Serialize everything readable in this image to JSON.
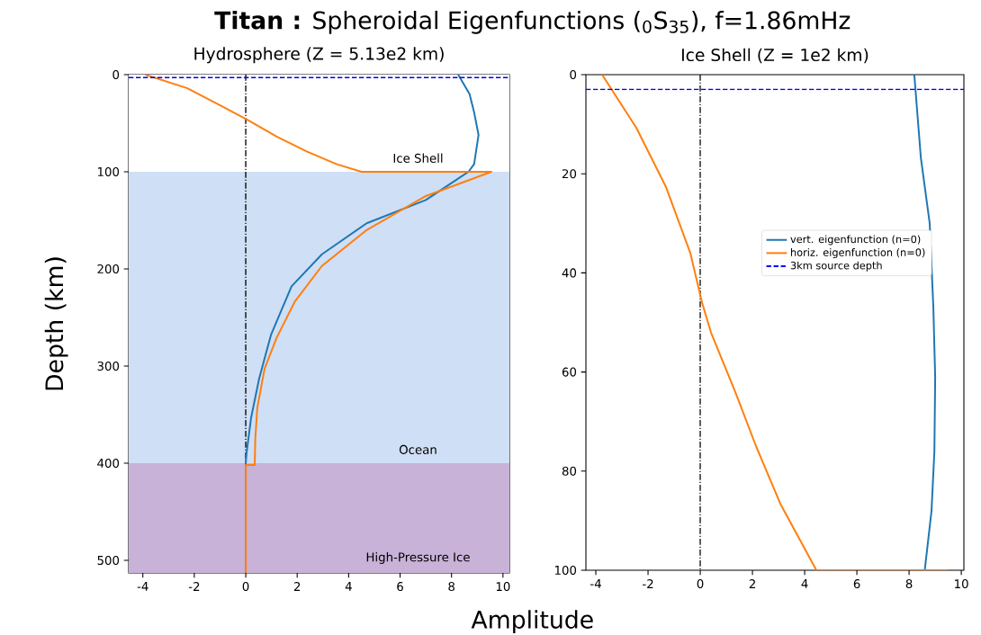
{
  "chart_data": [
    {
      "type": "line",
      "title": "Hydrosphere (Z = 5.13e2 km)",
      "xlabel": "Amplitude",
      "ylabel": "Depth (km)",
      "xlim": [
        -4.55,
        10.25
      ],
      "ylim": [
        513,
        0
      ],
      "xticks": [
        -4,
        -2,
        0,
        2,
        4,
        6,
        8,
        10
      ],
      "yticks": [
        0,
        100,
        200,
        300,
        400,
        500
      ],
      "series": [
        {
          "color": "#1f77b4",
          "x": [
            8.26,
            8.7,
            8.88,
            9.05,
            8.88,
            8.66,
            7.0,
            4.7,
            2.96,
            1.78,
            0.98,
            0.52,
            0.21,
            0.03,
            0,
            0
          ],
          "values": [
            0,
            20,
            39,
            62,
            92,
            100,
            129,
            153,
            185,
            218,
            268,
            313,
            353,
            390,
            400,
            513
          ]
        },
        {
          "color": "#ff7f0e",
          "x": [
            -3.9,
            -2.27,
            -1.11,
            0.03,
            1.22,
            2.37,
            3.52,
            4.5,
            9.55,
            7.0,
            4.7,
            2.96,
            1.9,
            1.2,
            0.73,
            0.45,
            0.37,
            0.35,
            0,
            0
          ],
          "values": [
            0,
            14,
            30,
            46,
            64,
            79,
            92,
            100,
            100,
            125,
            160,
            197,
            234,
            271,
            303,
            343,
            375,
            402,
            402,
            513
          ]
        }
      ],
      "ref_lines": [
        {
          "axis": "x",
          "value": 0,
          "color": "#000000",
          "line_style": "dashdot"
        },
        {
          "axis": "y",
          "value": 3,
          "color": "#0000ff",
          "line_style": "dashed"
        }
      ],
      "bands": [
        {
          "axis": "y",
          "from": 0,
          "to": 100,
          "color": "#ffffff",
          "label": "Ice Shell"
        },
        {
          "axis": "y",
          "from": 100,
          "to": 400,
          "color": "#cfdff6",
          "label": "Ocean"
        },
        {
          "axis": "y",
          "from": 400,
          "to": 513,
          "color": "#c8b2d8",
          "label": "High-Pressure Ice"
        }
      ],
      "annotations": [
        "**Titan :** Spheroidal Eigenfunctions ($_{0}$S$_{35}$), f=1.86mHz"
      ],
      "legend": false,
      "grid": false,
      "marker": "none",
      "line_style": "solid"
    },
    {
      "type": "line",
      "title": "Ice Shell (Z = 1e2 km)",
      "xlim": [
        -4.38,
        10.1
      ],
      "ylim": [
        100,
        0
      ],
      "xticks": [
        -4,
        -2,
        0,
        2,
        4,
        6,
        8,
        10
      ],
      "yticks": [
        0,
        20,
        40,
        60,
        80,
        100
      ],
      "series": [
        {
          "name": "vert. eigenfunction (n=0)",
          "color": "#1f77b4",
          "x": [
            8.2,
            8.45,
            8.79,
            8.93,
            9.0,
            8.97,
            8.86,
            8.6
          ],
          "values": [
            0,
            16.7,
            30,
            47,
            61,
            76,
            88,
            100
          ]
        },
        {
          "name": "horiz. eigenfunction (n=0)",
          "color": "#ff7f0e",
          "x": [
            -3.76,
            -2.45,
            -1.31,
            -0.38,
            0.07,
            0.41,
            1.34,
            2.14,
            3.07,
            4.45,
            9.48
          ],
          "values": [
            0,
            10.7,
            22.7,
            36,
            46,
            52,
            64,
            75,
            86.6,
            100,
            100
          ]
        }
      ],
      "ref_lines": [
        {
          "axis": "x",
          "value": 0,
          "color": "#000000",
          "line_style": "dashdot"
        },
        {
          "axis": "y",
          "value": 3,
          "label": "3km source depth",
          "color": "#0000ff",
          "line_style": "dashed"
        }
      ],
      "legend": "right",
      "grid": false,
      "marker": "none",
      "line_style": "solid"
    }
  ]
}
